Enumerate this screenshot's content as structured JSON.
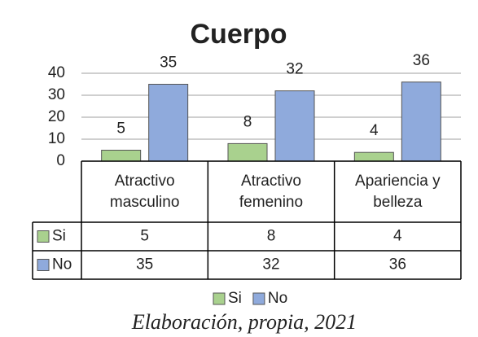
{
  "chart_data": {
    "type": "bar",
    "title": "Cuerpo",
    "categories": [
      "Atractivo masculino",
      "Atractivo femenino",
      "Apariencia y belleza"
    ],
    "series": [
      {
        "name": "Si",
        "color": "#a9d18e",
        "values": [
          5,
          8,
          4
        ]
      },
      {
        "name": "No",
        "color": "#8faadc",
        "values": [
          35,
          32,
          36
        ]
      }
    ],
    "ylim": [
      0,
      40
    ],
    "yticks": [
      0,
      10,
      20,
      30,
      40
    ],
    "grid": true,
    "data_table": true,
    "legend": "bottom",
    "caption": "Elaboración, propia, 2021"
  }
}
